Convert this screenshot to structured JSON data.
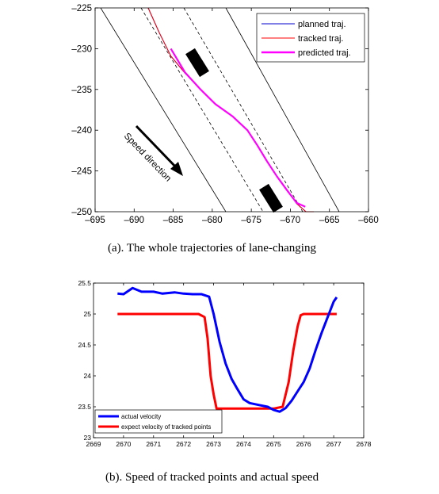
{
  "chart_data": [
    {
      "type": "line",
      "xlim": [
        -695,
        -660
      ],
      "ylim": [
        -250,
        -225
      ],
      "xticks": [
        -695,
        -690,
        -685,
        -680,
        -675,
        -670,
        -665,
        -660
      ],
      "yticks": [
        -225,
        -230,
        -235,
        -240,
        -245,
        -250
      ],
      "legend": {
        "position": "top-right",
        "entries": [
          "planned traj.",
          "tracked traj.",
          "predicted traj."
        ]
      },
      "series": [
        {
          "name": "planned traj.",
          "color": "#0000cc",
          "x": [
            -688.2,
            -686.8,
            -685.3,
            -683.5,
            -681.6,
            -679.6,
            -677.4,
            -675.5,
            -674.2,
            -673.0,
            -671.7,
            -670.4,
            -669.2,
            -668.0,
            -667.0
          ],
          "y": [
            -225.0,
            -228.0,
            -230.9,
            -233.0,
            -234.9,
            -236.8,
            -238.3,
            -240.0,
            -241.9,
            -243.8,
            -245.7,
            -247.4,
            -249.0,
            -250.0,
            -250.0
          ]
        },
        {
          "name": "tracked traj.",
          "color": "#ff0000",
          "x": [
            -688.2,
            -686.8,
            -685.3,
            -683.5,
            -681.6,
            -679.6,
            -677.4,
            -675.5,
            -674.2,
            -673.0,
            -671.7,
            -670.4,
            -669.2,
            -668.0,
            -667.0
          ],
          "y": [
            -225.0,
            -228.0,
            -230.9,
            -233.0,
            -234.9,
            -236.8,
            -238.3,
            -240.0,
            -241.9,
            -243.8,
            -245.7,
            -247.4,
            -249.0,
            -250.0,
            -250.0
          ]
        },
        {
          "name": "predicted traj.",
          "color": "#ff00ff",
          "x": [
            -685.3,
            -683.5,
            -681.6,
            -679.6,
            -677.4,
            -675.5,
            -674.2,
            -673.0,
            -671.7,
            -670.4,
            -669.2,
            -668.1
          ],
          "y": [
            -230.0,
            -232.9,
            -234.9,
            -236.8,
            -238.3,
            -240.0,
            -241.9,
            -243.8,
            -245.7,
            -247.4,
            -248.9,
            -249.4
          ]
        }
      ],
      "annotations": {
        "arrow_label": "Speed direction"
      }
    },
    {
      "type": "line",
      "xlim": [
        2669,
        2678
      ],
      "ylim": [
        23,
        25.5
      ],
      "xticks": [
        2669,
        2670,
        2671,
        2672,
        2673,
        2674,
        2675,
        2676,
        2677,
        2678
      ],
      "yticks": [
        23,
        23.5,
        24,
        24.5,
        25,
        25.5
      ],
      "legend": {
        "position": "bottom-left",
        "entries": [
          "actual velocity",
          "expect velocity of tracked points"
        ]
      },
      "series": [
        {
          "name": "actual velocity",
          "color": "#0000ff",
          "x": [
            2669.8,
            2670.0,
            2670.3,
            2670.6,
            2671.0,
            2671.3,
            2671.7,
            2672.0,
            2672.3,
            2672.6,
            2672.85,
            2673.0,
            2673.2,
            2673.4,
            2673.6,
            2673.8,
            2674.0,
            2674.2,
            2674.5,
            2674.8,
            2675.0,
            2675.2,
            2675.4,
            2675.6,
            2675.8,
            2676.0,
            2676.2,
            2676.4,
            2676.6,
            2676.8,
            2677.0,
            2677.1
          ],
          "y": [
            25.33,
            25.32,
            25.42,
            25.36,
            25.36,
            25.33,
            25.35,
            25.33,
            25.32,
            25.32,
            25.28,
            25.0,
            24.55,
            24.2,
            23.95,
            23.78,
            23.62,
            23.56,
            23.53,
            23.5,
            23.45,
            23.42,
            23.48,
            23.6,
            23.75,
            23.9,
            24.12,
            24.42,
            24.7,
            24.95,
            25.2,
            25.27
          ]
        },
        {
          "name": "expect velocity of tracked points",
          "color": "#ff0000",
          "x": [
            2669.8,
            2670.5,
            2671.5,
            2672.5,
            2672.7,
            2672.8,
            2672.9,
            2673.0,
            2673.1,
            2674.0,
            2675.0,
            2675.3,
            2675.5,
            2675.65,
            2675.8,
            2675.9,
            2676.0,
            2676.5,
            2677.1
          ],
          "y": [
            25.0,
            25.0,
            25.0,
            25.0,
            24.95,
            24.6,
            24.0,
            23.7,
            23.47,
            23.47,
            23.47,
            23.5,
            23.9,
            24.4,
            24.8,
            24.98,
            25.0,
            25.0,
            25.0
          ]
        }
      ]
    }
  ],
  "captions": {
    "top": "(a). The whole trajectories of lane-changing",
    "bottom": "(b). Speed of tracked points and actual speed"
  },
  "legend_text": {
    "planned": "planned traj.",
    "tracked": "tracked traj.",
    "predicted": "predicted traj.",
    "actual": "actual velocity",
    "expected": "expect velocity of tracked points"
  },
  "annotation_text": {
    "speed_direction": "Speed direction"
  }
}
